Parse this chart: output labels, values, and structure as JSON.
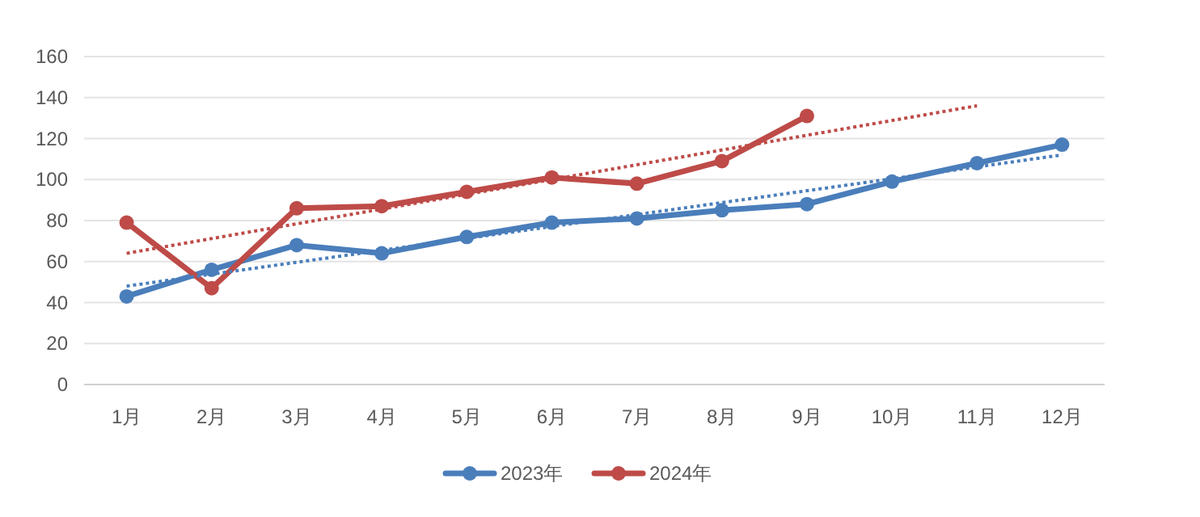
{
  "chart_data": {
    "type": "line",
    "categories": [
      "1月",
      "2月",
      "3月",
      "4月",
      "5月",
      "6月",
      "7月",
      "8月",
      "9月",
      "10月",
      "11月",
      "12月"
    ],
    "ylim": [
      0,
      160
    ],
    "yticks": [
      0,
      20,
      40,
      60,
      80,
      100,
      120,
      140,
      160
    ],
    "grid": "y",
    "legend": "bottom",
    "marker": "circle",
    "series": [
      {
        "name": "2023年",
        "color": "#4a7ebb",
        "values": [
          43,
          56,
          68,
          64,
          72,
          79,
          81,
          85,
          88,
          99,
          108,
          117
        ]
      },
      {
        "name": "2024年",
        "color": "#be4b48",
        "values": [
          79,
          47,
          86,
          87,
          94,
          101,
          98,
          109,
          131,
          null,
          null,
          null
        ]
      },
      {
        "type": "line",
        "color": "#4a7ebb",
        "line_style": "dotted",
        "marker": "none",
        "x": [
          "1月",
          "12月"
        ],
        "values": [
          48,
          112
        ]
      },
      {
        "type": "line",
        "color": "#be4b48",
        "line_style": "dotted",
        "marker": "none",
        "x": [
          "1月",
          "11月"
        ],
        "values": [
          64,
          136
        ]
      }
    ]
  }
}
